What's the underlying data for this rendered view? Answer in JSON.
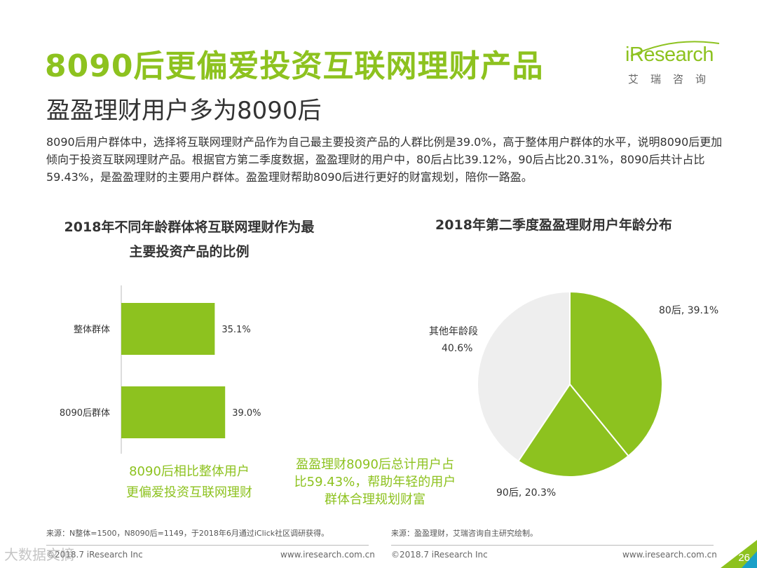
{
  "title": "8090后更偏爱投资互联网理财产品",
  "subtitle": "盈盈理财用户多为8090后",
  "intro": "8090后用户群体中，选择将互联网理财产品作为自己最主要投资产品的人群比例是39.0%，高于整体用户群体的水平，说明8090后更加倾向于投资互联网理财产品。根据官方第二季度数据，盈盈理财的用户中，80后占比39.12%，90后占比20.31%，8090后共计占比59.43%，是盈盈理财的主要用户群体。盈盈理财帮助8090后进行更好的财富规划，陪你一路盈。",
  "logo": {
    "word": "iResearch",
    "sub": "艾瑞咨询"
  },
  "colors": {
    "accent": "#8dc21f",
    "pie_light": "#eeeeee"
  },
  "chart_data": [
    {
      "type": "bar",
      "orientation": "horizontal",
      "title_line1": "2018年不同年龄群体将互联网理财作为最",
      "title_line2": "主要投资产品的比例",
      "categories": [
        "整体群体",
        "8090后群体"
      ],
      "values": [
        35.1,
        39.0
      ],
      "value_labels": [
        "35.1%",
        "39.0%"
      ],
      "unit": "%",
      "note": [
        "8090后相比整体用户",
        "更偏爱投资互联网理财"
      ]
    },
    {
      "type": "pie",
      "title": "2018年第二季度盈盈理财用户年龄分布",
      "slices": [
        {
          "name": "80后",
          "value": 39.1,
          "label": "80后, 39.1%",
          "color": "#8dc21f"
        },
        {
          "name": "90后",
          "value": 20.3,
          "label": "90后, 20.3%",
          "color": "#8dc21f"
        },
        {
          "name": "其他年龄段",
          "value": 40.6,
          "label_name": "其他年龄段",
          "label_value": "40.6%",
          "color": "#eeeeee"
        }
      ],
      "note": [
        "盈盈理财8090后总计用户占",
        "比59.43%，帮助年轻的用户",
        "群体合理规划财富"
      ]
    }
  ],
  "footer": {
    "source_left": "来源：N整体=1500，N8090后=1149，于2018年6月通过iClick社区调研获得。",
    "source_right": "来源：盈盈理财，艾瑞咨询自主研究绘制。",
    "copyright_left": "©2018.7 iResearch Inc",
    "url_left": "www.iresearch.com.cn",
    "copyright_right": "©2018.7 iResearch Inc",
    "url_right": "www.iresearch.com.cn",
    "page_number": "26"
  },
  "watermark": "大数据文摘"
}
